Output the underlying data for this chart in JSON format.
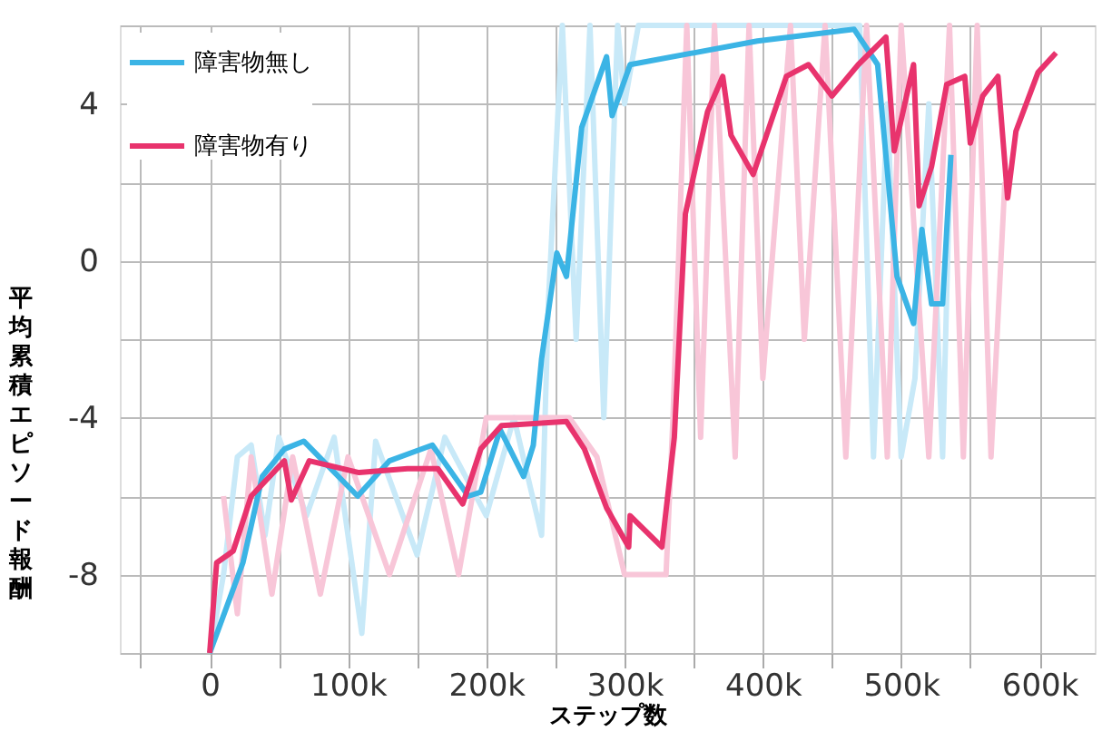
{
  "chart_data": {
    "type": "line",
    "xlabel": "ステップ数",
    "ylabel": "平均累積エピソード報酬",
    "xlim": [
      -65000,
      640000
    ],
    "ylim": [
      -10,
      6
    ],
    "xticks": [
      {
        "value": -50000,
        "label": null
      },
      {
        "value": 0,
        "label": "0"
      },
      {
        "value": 50000,
        "label": null
      },
      {
        "value": 100000,
        "label": "100k"
      },
      {
        "value": 150000,
        "label": null
      },
      {
        "value": 200000,
        "label": "200k"
      },
      {
        "value": 250000,
        "label": null
      },
      {
        "value": 300000,
        "label": "300k"
      },
      {
        "value": 350000,
        "label": null
      },
      {
        "value": 400000,
        "label": "400k"
      },
      {
        "value": 450000,
        "label": null
      },
      {
        "value": 500000,
        "label": "500k"
      },
      {
        "value": 550000,
        "label": null
      },
      {
        "value": 600000,
        "label": "600k"
      }
    ],
    "yticks": [
      {
        "value": -10,
        "label": null
      },
      -8,
      {
        "value": -6,
        "label": null
      },
      -4,
      {
        "value": -2,
        "label": null
      },
      0,
      {
        "value": 2,
        "label": null
      },
      4,
      {
        "value": 6,
        "label": null
      }
    ],
    "grid": true,
    "legend": "top left",
    "series": [
      {
        "color": "#c8e9f8",
        "x": [
          0,
          10000,
          20000,
          30000,
          40000,
          50000,
          70000,
          90000,
          110000,
          120000,
          150000,
          170000,
          200000,
          220000,
          240000,
          245000,
          255000,
          265000,
          275000,
          285000,
          295000,
          300000,
          310000,
          470000,
          480000,
          490000,
          500000,
          510000,
          520000,
          530000,
          535000
        ],
        "values": [
          -10,
          -8,
          -5,
          -4.7,
          -7,
          -4.5,
          -6.5,
          -4.5,
          -9.5,
          -4.6,
          -7.5,
          -4.5,
          -6.5,
          -4,
          -7,
          -1,
          6,
          -2,
          6,
          -4,
          6,
          4,
          6,
          6,
          -5,
          4,
          -5,
          -3,
          4,
          -5,
          2
        ]
      },
      {
        "color": "#f8c6d8",
        "x": [
          10000,
          20000,
          30000,
          45000,
          60000,
          80000,
          100000,
          130000,
          160000,
          180000,
          200000,
          230000,
          260000,
          280000,
          300000,
          330000,
          335000,
          345000,
          355000,
          365000,
          380000,
          390000,
          400000,
          420000,
          430000,
          445000,
          460000,
          475000,
          490000,
          500000,
          520000,
          535000,
          545000,
          555000,
          565000,
          575000
        ],
        "values": [
          -6,
          -9,
          -5,
          -8.5,
          -5,
          -8.5,
          -5,
          -8,
          -4.8,
          -8,
          -4,
          -4,
          -4,
          -5,
          -8,
          -8,
          -4,
          6,
          -4.5,
          6,
          -5,
          6,
          -3,
          6,
          -2,
          6,
          -5,
          6,
          -5,
          6,
          -5,
          6,
          -5,
          6,
          -5,
          2
        ]
      },
      {
        "name": "障害物無し",
        "color": "#3bb4e5",
        "x": [
          0,
          24000,
          38000,
          54000,
          68000,
          107000,
          130000,
          161000,
          187000,
          196000,
          210000,
          227000,
          234000,
          240000,
          251000,
          258000,
          269000,
          287000,
          291000,
          304000,
          396000,
          466000,
          483000,
          497000,
          509000,
          515000,
          522000,
          530000,
          536000
        ],
        "values": [
          -10,
          -7.7,
          -5.5,
          -4.8,
          -4.6,
          -6.0,
          -5.1,
          -4.7,
          -6.0,
          -5.9,
          -4.3,
          -5.5,
          -4.7,
          -2.5,
          0.2,
          -0.4,
          3.4,
          5.2,
          3.7,
          5.0,
          5.6,
          5.9,
          5.0,
          -0.4,
          -1.6,
          0.8,
          -1.1,
          -1.1,
          2.7
        ]
      },
      {
        "name": "障害物有り",
        "color": "#e8336d",
        "x": [
          0,
          5000,
          17000,
          30000,
          54000,
          59000,
          72000,
          108000,
          143000,
          165000,
          183000,
          196000,
          211000,
          258000,
          271000,
          287000,
          303000,
          304000,
          327000,
          336000,
          344000,
          360000,
          371000,
          377000,
          393000,
          417000,
          433000,
          450000,
          469000,
          489000,
          495000,
          509000,
          513000,
          522000,
          533000,
          546000,
          550000,
          559000,
          570000,
          577000,
          583000,
          599000,
          612000
        ],
        "values": [
          -10,
          -7.7,
          -7.4,
          -6.0,
          -5.1,
          -6.1,
          -5.1,
          -5.4,
          -5.3,
          -5.3,
          -6.2,
          -4.8,
          -4.2,
          -4.1,
          -4.8,
          -6.3,
          -7.3,
          -6.5,
          -7.3,
          -4.5,
          1.2,
          3.8,
          4.7,
          3.2,
          2.2,
          4.7,
          5.0,
          4.2,
          5.0,
          5.7,
          2.8,
          5.0,
          1.4,
          2.4,
          4.5,
          4.7,
          3.0,
          4.2,
          4.7,
          1.6,
          3.3,
          4.8,
          5.3
        ]
      }
    ]
  }
}
